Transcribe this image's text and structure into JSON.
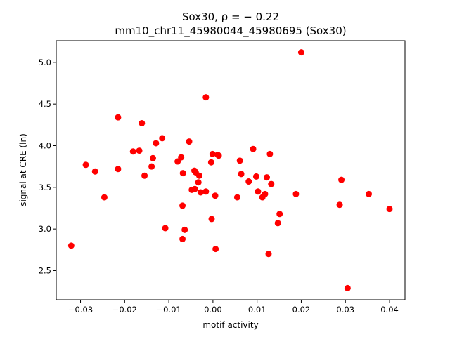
{
  "chart_data": {
    "type": "scatter",
    "title_line1": "Sox30, ρ = − 0.22",
    "title_line2": "mm10_chr11_45980044_45980695 (Sox30)",
    "xlabel": "motif activity",
    "ylabel": "signal at CRE (ln)",
    "xlim": [
      -0.0355,
      0.0435
    ],
    "ylim": [
      2.15,
      5.26
    ],
    "xticks": [
      -0.03,
      -0.02,
      -0.01,
      0.0,
      0.01,
      0.02,
      0.03,
      0.04
    ],
    "xtick_labels": [
      "−0.03",
      "−0.02",
      "−0.01",
      "0.00",
      "0.01",
      "0.02",
      "0.03",
      "0.04"
    ],
    "yticks": [
      2.5,
      3.0,
      3.5,
      4.0,
      4.5,
      5.0
    ],
    "ytick_labels": [
      "2.5",
      "3.0",
      "3.5",
      "4.0",
      "4.5",
      "5.0"
    ],
    "grid": false,
    "marker_color": "#ff0000",
    "points": [
      [
        -0.0321,
        2.8
      ],
      [
        -0.0288,
        3.77
      ],
      [
        -0.0267,
        3.69
      ],
      [
        -0.0246,
        3.38
      ],
      [
        -0.0215,
        4.34
      ],
      [
        -0.0215,
        3.72
      ],
      [
        -0.0181,
        3.93
      ],
      [
        -0.0167,
        3.94
      ],
      [
        -0.0161,
        4.27
      ],
      [
        -0.0155,
        3.64
      ],
      [
        -0.0139,
        3.75
      ],
      [
        -0.0136,
        3.85
      ],
      [
        -0.0129,
        4.03
      ],
      [
        -0.0115,
        4.09
      ],
      [
        -0.0108,
        3.01
      ],
      [
        -0.008,
        3.81
      ],
      [
        -0.0072,
        3.86
      ],
      [
        -0.0069,
        2.88
      ],
      [
        -0.0069,
        3.28
      ],
      [
        -0.0068,
        3.67
      ],
      [
        -0.0064,
        2.99
      ],
      [
        -0.0054,
        4.05
      ],
      [
        -0.0048,
        3.47
      ],
      [
        -0.0042,
        3.7
      ],
      [
        -0.0041,
        3.48
      ],
      [
        -0.0039,
        3.68
      ],
      [
        -0.0033,
        3.56
      ],
      [
        -0.0031,
        3.64
      ],
      [
        -0.0028,
        3.44
      ],
      [
        -0.0016,
        4.58
      ],
      [
        -0.0016,
        3.45
      ],
      [
        -0.0004,
        3.8
      ],
      [
        -0.0003,
        3.12
      ],
      [
        -0.0001,
        3.9
      ],
      [
        0.0005,
        3.4
      ],
      [
        0.0006,
        2.76
      ],
      [
        0.0011,
        3.89
      ],
      [
        0.0013,
        3.88
      ],
      [
        0.0055,
        3.38
      ],
      [
        0.0061,
        3.82
      ],
      [
        0.0064,
        3.66
      ],
      [
        0.0081,
        3.57
      ],
      [
        0.0091,
        3.96
      ],
      [
        0.0098,
        3.63
      ],
      [
        0.0102,
        3.45
      ],
      [
        0.0112,
        3.38
      ],
      [
        0.0118,
        3.42
      ],
      [
        0.0122,
        3.62
      ],
      [
        0.0126,
        2.7
      ],
      [
        0.0129,
        3.9
      ],
      [
        0.0132,
        3.54
      ],
      [
        0.0147,
        3.07
      ],
      [
        0.0151,
        3.18
      ],
      [
        0.0188,
        3.42
      ],
      [
        0.02,
        5.12
      ],
      [
        0.0287,
        3.29
      ],
      [
        0.0291,
        3.59
      ],
      [
        0.0305,
        2.29
      ],
      [
        0.0353,
        3.42
      ],
      [
        0.04,
        3.24
      ]
    ]
  }
}
